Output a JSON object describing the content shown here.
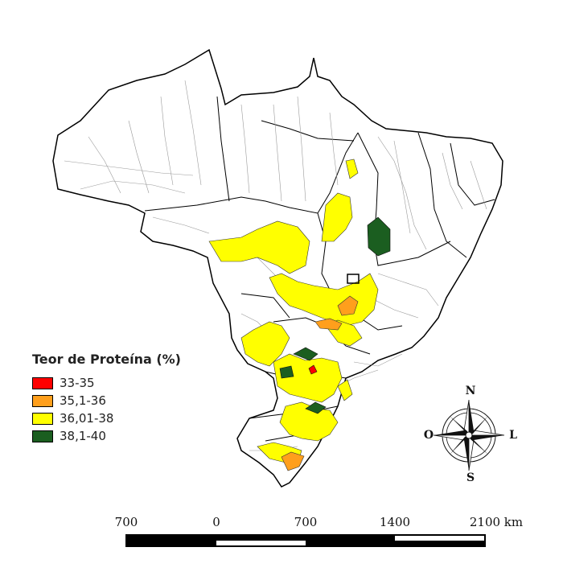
{
  "legend": {
    "title": "Teor de Proteína (%)",
    "classes": [
      {
        "label": "33-35",
        "color": "#ff0000"
      },
      {
        "label": "35,1-36",
        "color": "#ff9f1c"
      },
      {
        "label": "36,01-38",
        "color": "#ffff00"
      },
      {
        "label": "38,1-40",
        "color": "#1b5e20"
      }
    ]
  },
  "scale_bar": {
    "labels": [
      "700",
      "0",
      "700",
      "1400",
      "2100 km"
    ]
  },
  "compass": {
    "north": "N",
    "south": "S",
    "east": "L",
    "west": "O"
  },
  "colors": {
    "land": "#ffffff",
    "state_border": "#000000",
    "municipality_border": "#9a9a9a"
  }
}
